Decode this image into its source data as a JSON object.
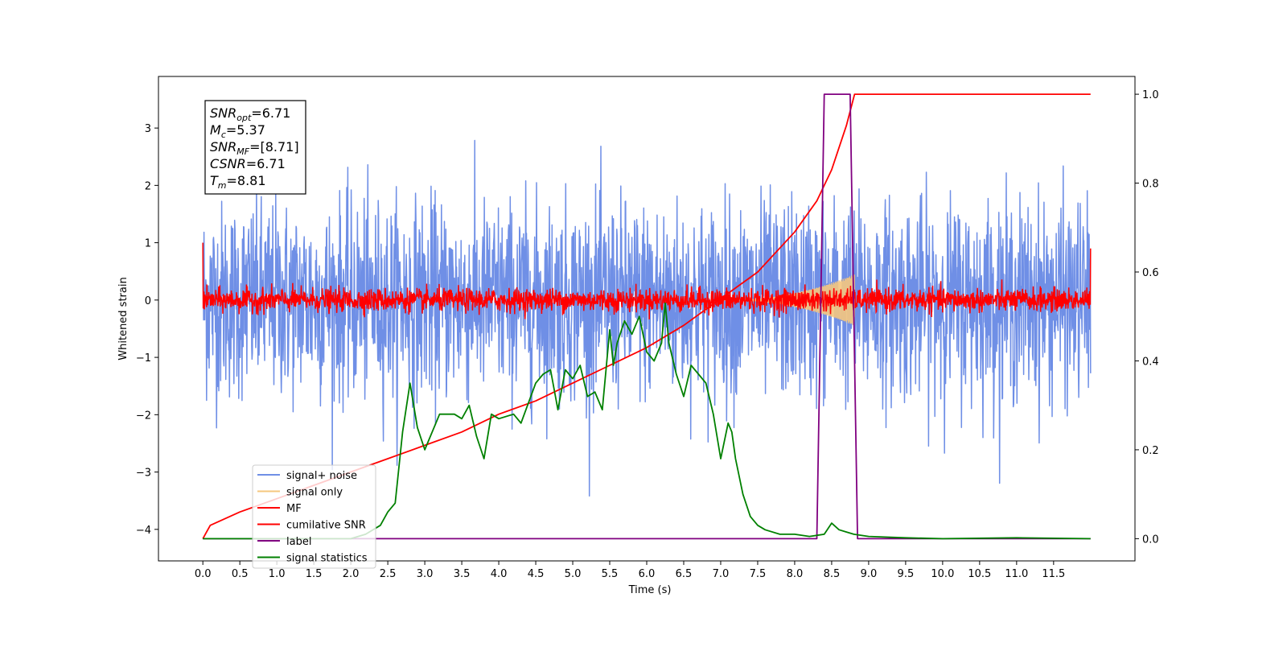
{
  "chart_data": {
    "type": "line",
    "title": "",
    "xlabel": "Time (s)",
    "ylabel": "Whitened strain",
    "y2label": "",
    "xlim": [
      -0.6,
      12.6
    ],
    "ylim": [
      -4.55,
      3.9
    ],
    "y2lim": [
      -0.05,
      1.04
    ],
    "x_ticks": [
      0.0,
      0.5,
      1.0,
      1.5,
      2.0,
      2.5,
      3.0,
      3.5,
      4.0,
      4.5,
      5.0,
      5.5,
      6.0,
      6.5,
      7.0,
      7.5,
      8.0,
      8.5,
      9.0,
      9.5,
      10.0,
      10.5,
      11.0,
      11.5
    ],
    "x_tick_labels": [
      "0.0",
      "0.5",
      "1.0",
      "1.5",
      "2.0",
      "2.5",
      "3.0",
      "3.5",
      "4.0",
      "4.5",
      "5.0",
      "5.5",
      "6.0",
      "6.5",
      "7.0",
      "7.5",
      "8.0",
      "8.5",
      "9.0",
      "9.5",
      "10.0",
      "10.5",
      "11.0",
      "11.5"
    ],
    "y_ticks": [
      3,
      2,
      1,
      0,
      -1,
      -2,
      -3,
      -4
    ],
    "y_tick_labels": [
      "3",
      "2",
      "1",
      "0",
      "−1",
      "−2",
      "−3",
      "−4"
    ],
    "y2_ticks": [
      1.0,
      0.8,
      0.6,
      0.4,
      0.2,
      0.0
    ],
    "y2_tick_labels": [
      "1.0",
      "0.8",
      "0.6",
      "0.4",
      "0.2",
      "0.0"
    ],
    "grid": false,
    "legend_position": "lower-left",
    "series": [
      {
        "name": "signal+ noise",
        "axis": "left",
        "color": "#6f8fe6",
        "kind": "noise",
        "x_range": [
          0,
          12
        ],
        "amplitude_sigma": 0.85
      },
      {
        "name": "signal only",
        "axis": "left",
        "color": "#f5c77e",
        "kind": "chirp",
        "x_range": [
          7.0,
          8.81
        ],
        "peak_amplitude": 0.45
      },
      {
        "name": "MF",
        "axis": "left",
        "color": "#ff0000",
        "kind": "noise",
        "x_range": [
          0,
          12
        ],
        "amplitude_sigma": 0.1
      },
      {
        "name": "cumilative SNR",
        "axis": "right",
        "color": "#ff0000",
        "kind": "line",
        "x": [
          0.0,
          0.1,
          0.5,
          1.0,
          1.5,
          2.0,
          2.5,
          3.0,
          3.5,
          4.0,
          4.5,
          5.0,
          5.5,
          6.0,
          6.5,
          7.0,
          7.5,
          8.0,
          8.3,
          8.5,
          8.7,
          8.81,
          9.0,
          10.0,
          11.0,
          12.0
        ],
        "values": [
          0.0,
          0.03,
          0.06,
          0.09,
          0.12,
          0.15,
          0.18,
          0.21,
          0.24,
          0.28,
          0.31,
          0.35,
          0.39,
          0.43,
          0.48,
          0.54,
          0.6,
          0.69,
          0.76,
          0.83,
          0.93,
          1.0,
          1.0,
          1.0,
          1.0,
          1.0
        ]
      },
      {
        "name": "label",
        "axis": "right",
        "color": "#800080",
        "kind": "line",
        "x": [
          0.0,
          8.3,
          8.4,
          8.75,
          8.85,
          12.0
        ],
        "values": [
          0.0,
          0.0,
          1.0,
          1.0,
          0.0,
          0.0
        ]
      },
      {
        "name": "signal statistics",
        "axis": "right",
        "color": "#008000",
        "kind": "line",
        "x": [
          0.0,
          0.5,
          1.0,
          1.5,
          2.0,
          2.2,
          2.4,
          2.5,
          2.6,
          2.7,
          2.8,
          2.9,
          3.0,
          3.2,
          3.4,
          3.5,
          3.6,
          3.7,
          3.8,
          3.9,
          4.0,
          4.2,
          4.3,
          4.5,
          4.6,
          4.7,
          4.8,
          4.9,
          5.0,
          5.1,
          5.2,
          5.3,
          5.4,
          5.5,
          5.55,
          5.6,
          5.7,
          5.8,
          5.9,
          6.0,
          6.1,
          6.2,
          6.25,
          6.3,
          6.4,
          6.5,
          6.6,
          6.7,
          6.8,
          6.9,
          7.0,
          7.1,
          7.15,
          7.2,
          7.3,
          7.4,
          7.5,
          7.6,
          7.8,
          8.0,
          8.2,
          8.4,
          8.5,
          8.6,
          8.7,
          8.8,
          9.0,
          9.5,
          10.0,
          11.0,
          12.0
        ],
        "values": [
          0.0,
          0.0,
          0.0,
          0.0,
          0.0,
          0.01,
          0.03,
          0.06,
          0.08,
          0.24,
          0.35,
          0.25,
          0.2,
          0.28,
          0.28,
          0.27,
          0.3,
          0.23,
          0.18,
          0.28,
          0.27,
          0.28,
          0.26,
          0.35,
          0.37,
          0.38,
          0.29,
          0.38,
          0.36,
          0.39,
          0.32,
          0.33,
          0.29,
          0.47,
          0.39,
          0.44,
          0.49,
          0.46,
          0.5,
          0.42,
          0.4,
          0.44,
          0.53,
          0.44,
          0.37,
          0.32,
          0.39,
          0.37,
          0.35,
          0.28,
          0.18,
          0.26,
          0.24,
          0.18,
          0.1,
          0.05,
          0.03,
          0.02,
          0.01,
          0.01,
          0.005,
          0.01,
          0.035,
          0.02,
          0.015,
          0.01,
          0.005,
          0.002,
          0.0,
          0.002,
          0.0
        ]
      }
    ],
    "annotation_box": [
      {
        "symbol": "SNR",
        "subscript": "opt",
        "value": "=6.71"
      },
      {
        "symbol": "M",
        "subscript": "c",
        "value": "=5.37"
      },
      {
        "symbol": "SNR",
        "subscript": "MF",
        "value": "=[8.71]"
      },
      {
        "symbol": "CSNR",
        "subscript": "",
        "value": "=6.71"
      },
      {
        "symbol": "T",
        "subscript": "m",
        "value": "=8.81"
      }
    ]
  }
}
